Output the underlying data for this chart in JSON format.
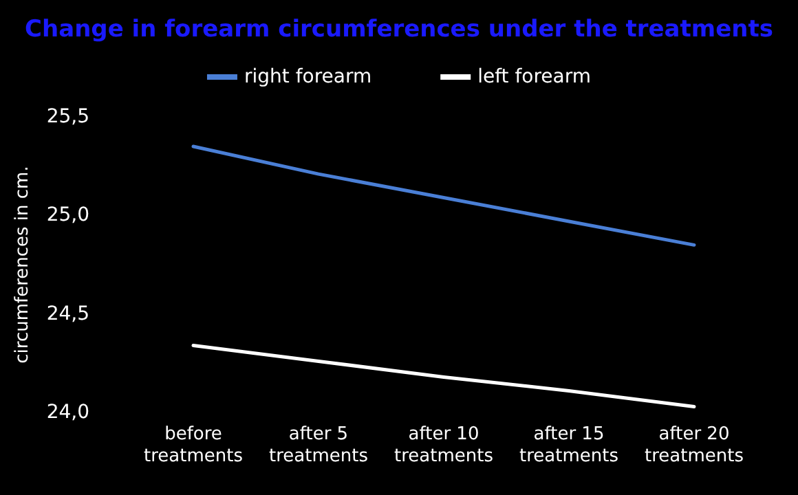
{
  "chart_data": {
    "type": "line",
    "title": "Change in forearm circumferences under the treatments",
    "ylabel": "circumferences in cm.",
    "categories": [
      "before\ntreatments",
      "after 5\ntreatments",
      "after 10\ntreatments",
      "after 15\ntreatments",
      "after 20\ntreatments"
    ],
    "series": [
      {
        "name": "right forearm",
        "color": "#4a7fd6",
        "values": [
          25.35,
          25.21,
          25.09,
          24.97,
          24.85
        ]
      },
      {
        "name": "left forearm",
        "color": "#ffffff",
        "values": [
          24.34,
          24.26,
          24.18,
          24.11,
          24.03
        ]
      }
    ],
    "ylim": [
      24,
      25.5
    ],
    "yticks": [
      {
        "value": 24,
        "label": "24,0"
      },
      {
        "value": 24.5,
        "label": "24,5"
      },
      {
        "value": 25,
        "label": "25,0"
      },
      {
        "value": 25.5,
        "label": "25,5"
      }
    ],
    "legend": "top",
    "marker": "none",
    "grid": false
  }
}
